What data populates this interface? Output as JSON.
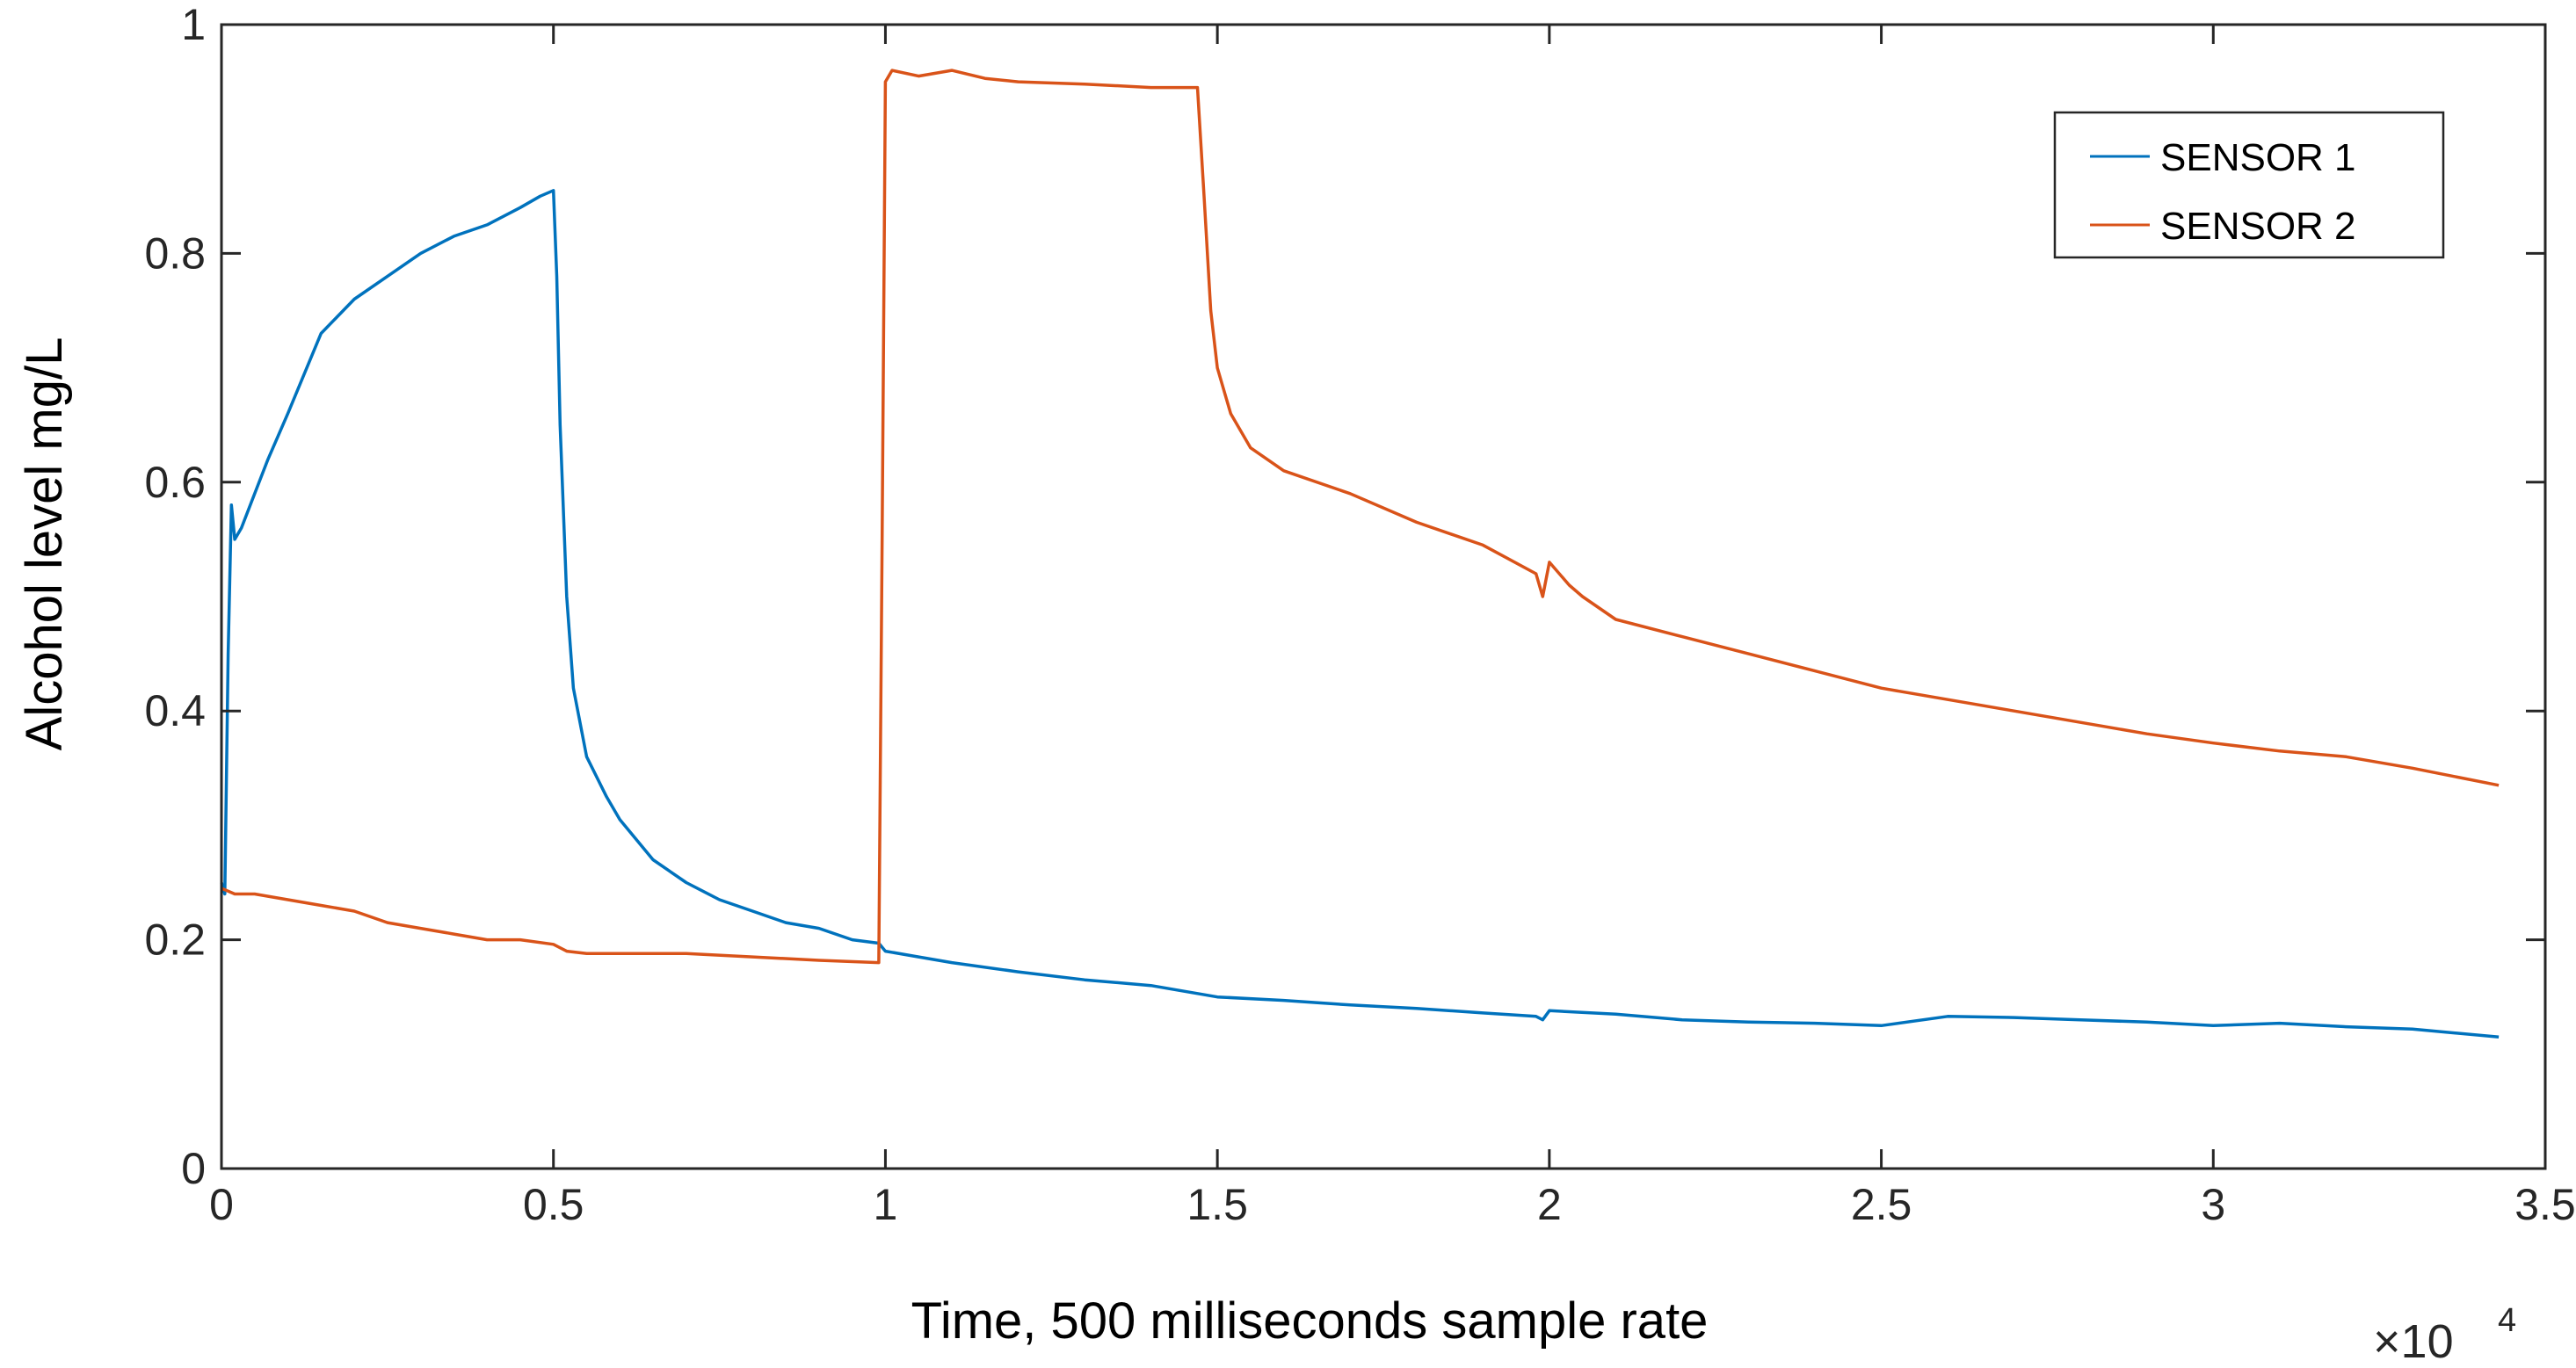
{
  "chart_data": {
    "type": "line",
    "title": "",
    "xlabel": "Time, 500  milliseconds sample rate",
    "ylabel": "Alcohol level   mg/L",
    "x_multiplier_label": "×10",
    "x_multiplier_exponent": "4",
    "xlim": [
      0,
      3.5
    ],
    "ylim": [
      0,
      1
    ],
    "xticks": [
      0,
      0.5,
      1,
      1.5,
      2,
      2.5,
      3,
      3.5
    ],
    "xtick_labels": [
      "0",
      "0.5",
      "1",
      "1.5",
      "2",
      "2.5",
      "3",
      "3.5"
    ],
    "yticks": [
      0,
      0.2,
      0.4,
      0.6,
      0.8,
      1
    ],
    "ytick_labels": [
      "0",
      "0.2",
      "0.4",
      "0.6",
      "0.8",
      "1"
    ],
    "legend_position": "top-right",
    "series": [
      {
        "name": "SENSOR 1",
        "color": "#0072BD",
        "x": [
          0,
          0.005,
          0.01,
          0.015,
          0.02,
          0.03,
          0.05,
          0.07,
          0.1,
          0.15,
          0.2,
          0.25,
          0.3,
          0.35,
          0.4,
          0.45,
          0.48,
          0.5,
          0.505,
          0.51,
          0.52,
          0.53,
          0.55,
          0.58,
          0.6,
          0.65,
          0.7,
          0.75,
          0.8,
          0.85,
          0.9,
          0.95,
          0.99,
          1.0,
          1.05,
          1.1,
          1.2,
          1.3,
          1.4,
          1.5,
          1.6,
          1.7,
          1.8,
          1.9,
          1.98,
          1.99,
          2.0,
          2.1,
          2.2,
          2.3,
          2.4,
          2.5,
          2.6,
          2.7,
          2.8,
          2.9,
          3.0,
          3.1,
          3.2,
          3.3,
          3.43
        ],
        "y": [
          0.25,
          0.24,
          0.45,
          0.58,
          0.55,
          0.56,
          0.59,
          0.62,
          0.66,
          0.73,
          0.76,
          0.78,
          0.8,
          0.815,
          0.825,
          0.84,
          0.85,
          0.855,
          0.78,
          0.65,
          0.5,
          0.42,
          0.36,
          0.325,
          0.305,
          0.27,
          0.25,
          0.235,
          0.225,
          0.215,
          0.21,
          0.2,
          0.197,
          0.19,
          0.185,
          0.18,
          0.172,
          0.165,
          0.16,
          0.15,
          0.147,
          0.143,
          0.14,
          0.136,
          0.133,
          0.13,
          0.138,
          0.135,
          0.13,
          0.128,
          0.127,
          0.125,
          0.133,
          0.132,
          0.13,
          0.128,
          0.125,
          0.127,
          0.124,
          0.122,
          0.115
        ]
      },
      {
        "name": "SENSOR 2",
        "color": "#D95319",
        "x": [
          0,
          0.02,
          0.05,
          0.1,
          0.15,
          0.2,
          0.25,
          0.3,
          0.35,
          0.4,
          0.45,
          0.5,
          0.52,
          0.55,
          0.6,
          0.7,
          0.8,
          0.9,
          0.99,
          0.995,
          1.0,
          1.01,
          1.05,
          1.1,
          1.15,
          1.2,
          1.3,
          1.4,
          1.47,
          1.48,
          1.49,
          1.5,
          1.52,
          1.55,
          1.6,
          1.7,
          1.8,
          1.9,
          1.98,
          1.99,
          2.0,
          2.03,
          2.05,
          2.1,
          2.2,
          2.3,
          2.4,
          2.5,
          2.6,
          2.7,
          2.8,
          2.9,
          3.0,
          3.1,
          3.2,
          3.3,
          3.43
        ],
        "y": [
          0.245,
          0.24,
          0.24,
          0.235,
          0.23,
          0.225,
          0.215,
          0.21,
          0.205,
          0.2,
          0.2,
          0.196,
          0.19,
          0.188,
          0.188,
          0.188,
          0.185,
          0.182,
          0.18,
          0.55,
          0.95,
          0.96,
          0.955,
          0.96,
          0.953,
          0.95,
          0.948,
          0.945,
          0.945,
          0.85,
          0.75,
          0.7,
          0.66,
          0.63,
          0.61,
          0.59,
          0.565,
          0.545,
          0.52,
          0.5,
          0.53,
          0.51,
          0.5,
          0.48,
          0.465,
          0.45,
          0.435,
          0.42,
          0.41,
          0.4,
          0.39,
          0.38,
          0.372,
          0.365,
          0.36,
          0.35,
          0.335
        ]
      }
    ]
  }
}
